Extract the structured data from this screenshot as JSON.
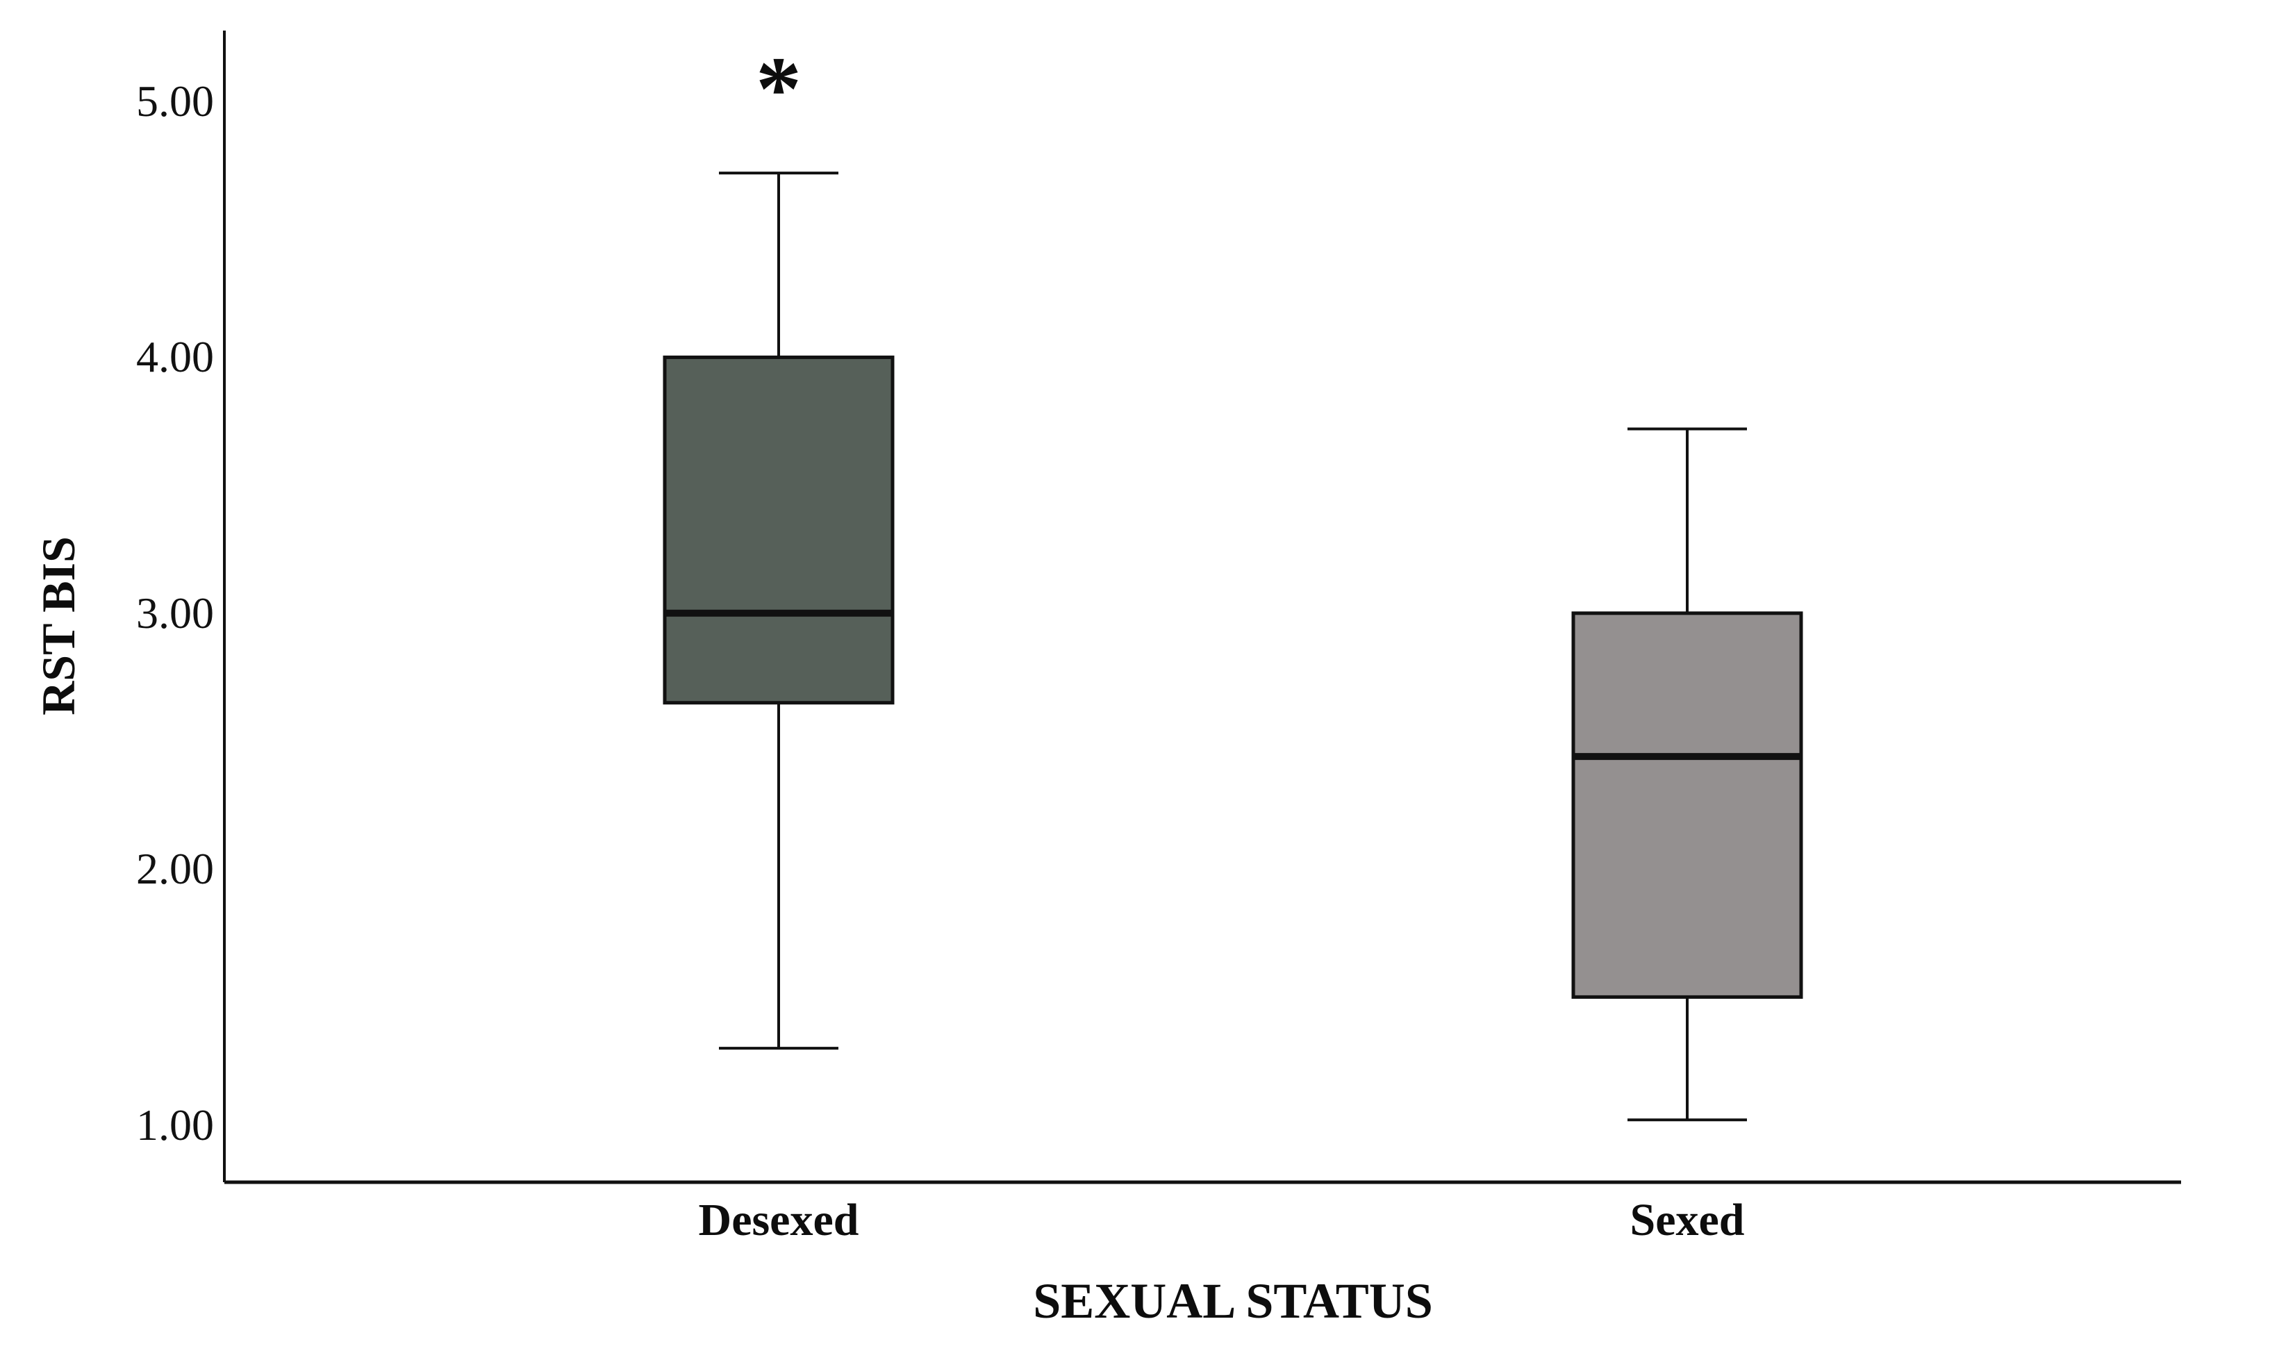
{
  "figure": {
    "background_color": "#ffffff",
    "line_color": "#111111",
    "text_color": "#0d0d0d"
  },
  "chart_data": {
    "type": "boxplot",
    "title": "",
    "xlabel": "SEXUAL STATUS",
    "ylabel": "RST BIS",
    "categories": [
      "Desexed",
      "Sexed"
    ],
    "y_ticks": [
      "5.00",
      "4.00",
      "3.00",
      "2.00",
      "1.00"
    ],
    "y_tick_values": [
      5.0,
      4.0,
      3.0,
      2.0,
      1.0
    ],
    "ylim": [
      1.0,
      5.0
    ],
    "grid": "off",
    "legend": "none",
    "significance_marker": "*",
    "significance_on": "Desexed",
    "series": [
      {
        "name": "Desexed",
        "whisker_low": 1.3,
        "q1": 2.65,
        "median": 3.0,
        "q3": 4.0,
        "whisker_high": 4.72,
        "fill": "#566059",
        "annotation": "*"
      },
      {
        "name": "Sexed",
        "whisker_low": 1.02,
        "q1": 1.5,
        "median": 2.44,
        "q3": 3.0,
        "whisker_high": 3.72,
        "fill": "#949090",
        "annotation": ""
      }
    ]
  }
}
